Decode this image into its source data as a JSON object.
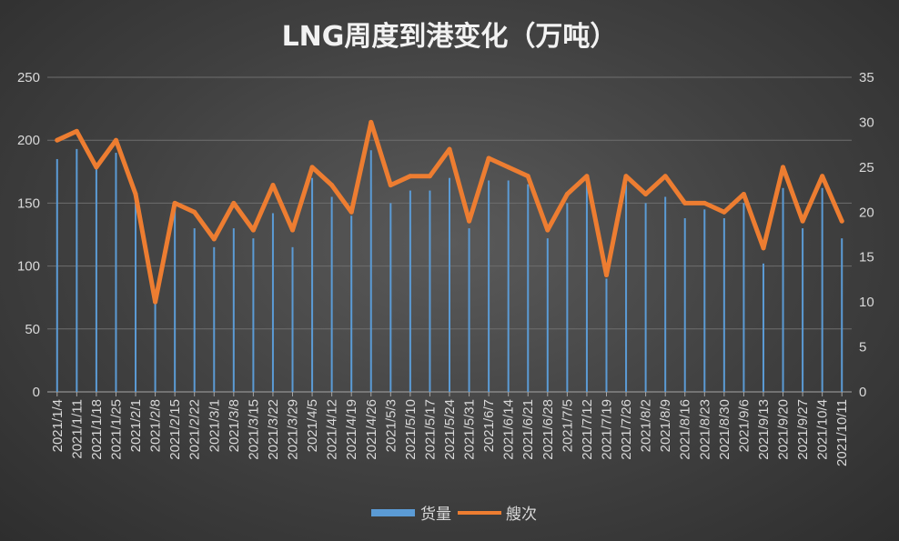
{
  "chart_data": {
    "type": "bar+line",
    "title": "LNG周度到港变化（万吨）",
    "categories": [
      "2021/1/4",
      "2021/1/11",
      "2021/1/18",
      "2021/1/25",
      "2021/2/1",
      "2021/2/8",
      "2021/2/15",
      "2021/2/22",
      "2021/3/1",
      "2021/3/8",
      "2021/3/15",
      "2021/3/22",
      "2021/3/29",
      "2021/4/5",
      "2021/4/12",
      "2021/4/19",
      "2021/4/26",
      "2021/5/3",
      "2021/5/10",
      "2021/5/17",
      "2021/5/24",
      "2021/5/31",
      "2021/6/7",
      "2021/6/14",
      "2021/6/21",
      "2021/6/28",
      "2021/7/5",
      "2021/7/12",
      "2021/7/19",
      "2021/7/26",
      "2021/8/2",
      "2021/8/9",
      "2021/8/16",
      "2021/8/23",
      "2021/8/30",
      "2021/9/6",
      "2021/9/13",
      "2021/9/20",
      "2021/9/27",
      "2021/10/4",
      "2021/10/11"
    ],
    "series": [
      {
        "name": "货量",
        "type": "bar",
        "axis": "left",
        "color": "#5b9bd5",
        "values": [
          185,
          193,
          178,
          190,
          152,
          72,
          145,
          130,
          115,
          130,
          122,
          142,
          115,
          170,
          155,
          140,
          192,
          150,
          160,
          160,
          170,
          130,
          168,
          168,
          165,
          122,
          150,
          165,
          90,
          165,
          150,
          155,
          138,
          145,
          138,
          150,
          102,
          162,
          130,
          162,
          122
        ]
      },
      {
        "name": "艘次",
        "type": "line",
        "axis": "right",
        "color": "#ed7d31",
        "values": [
          28,
          29,
          25,
          28,
          22,
          10,
          21,
          20,
          17,
          21,
          18,
          23,
          18,
          25,
          23,
          20,
          30,
          23,
          24,
          24,
          27,
          19,
          26,
          25,
          24,
          18,
          22,
          24,
          13,
          24,
          22,
          24,
          21,
          21,
          20,
          22,
          16,
          25,
          19,
          24,
          19
        ]
      }
    ],
    "y_left": {
      "min": 0,
      "max": 250,
      "ticks": [
        "0",
        "50",
        "100",
        "150",
        "200",
        "250"
      ]
    },
    "y_right": {
      "min": 0,
      "max": 35,
      "ticks": [
        "0",
        "5",
        "10",
        "15",
        "20",
        "25",
        "30",
        "35"
      ]
    },
    "grid": true,
    "legend_position": "bottom"
  }
}
